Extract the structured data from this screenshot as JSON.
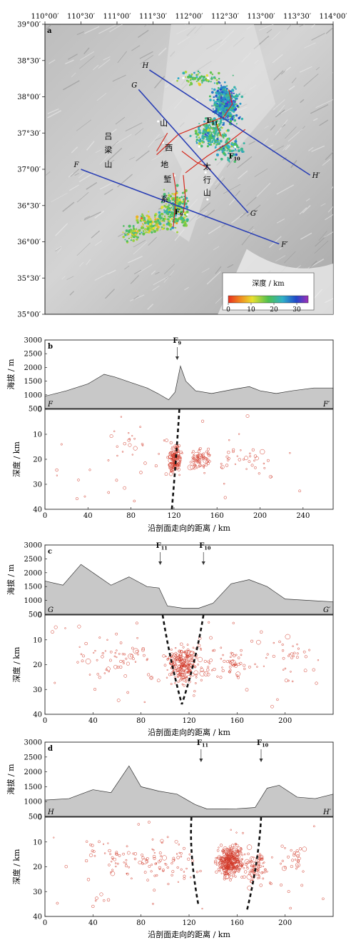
{
  "panel_a": {
    "label": "a",
    "lon_ticks": [
      "110°00′",
      "110°30′",
      "111°00′",
      "111°30′",
      "112°00′",
      "112°30′",
      "113°00′",
      "113°30′",
      "114°00′"
    ],
    "lat_ticks": [
      "39°00′",
      "38°30′",
      "38°00′",
      "37°30′",
      "37°00′",
      "36°30′",
      "36°00′",
      "35°30′",
      "35°00′"
    ],
    "lines": [
      {
        "start": "H",
        "end": "H′",
        "from": [
          111.45,
          38.37
        ],
        "to": [
          113.68,
          36.92
        ]
      },
      {
        "start": "G",
        "end": "G′",
        "from": [
          111.3,
          38.1
        ],
        "to": [
          112.82,
          36.4
        ]
      },
      {
        "start": "F",
        "end": "F′",
        "from": [
          110.5,
          37.0
        ],
        "to": [
          113.25,
          35.97
        ]
      }
    ],
    "faults": [
      {
        "label": "F",
        "sub": "11",
        "lon": 112.24,
        "lat": 37.64
      },
      {
        "label": "F",
        "sub": "10",
        "lon": 112.55,
        "lat": 37.15
      },
      {
        "label": "F",
        "sub": "9",
        "lon": 111.8,
        "lat": 36.38
      }
    ],
    "place_chars": [
      {
        "text": "吕",
        "lon": 110.88,
        "lat": 37.42
      },
      {
        "text": "梁",
        "lon": 110.88,
        "lat": 37.23
      },
      {
        "text": "山",
        "lon": 110.88,
        "lat": 37.03
      },
      {
        "text": "山",
        "lon": 111.65,
        "lat": 37.6
      },
      {
        "text": "西",
        "lon": 111.72,
        "lat": 37.26
      },
      {
        "text": "地",
        "lon": 111.66,
        "lat": 37.03
      },
      {
        "text": "堑",
        "lon": 111.7,
        "lat": 36.83
      },
      {
        "text": "系",
        "lon": 111.66,
        "lat": 36.55
      },
      {
        "text": "太",
        "lon": 112.25,
        "lat": 37.0
      },
      {
        "text": "行",
        "lon": 112.25,
        "lat": 36.82
      },
      {
        "text": "山",
        "lon": 112.25,
        "lat": 36.64
      }
    ],
    "legend": {
      "title": "深度 / km",
      "ticks": [
        "0",
        "10",
        "20",
        "30"
      ],
      "range": [
        0,
        35
      ]
    }
  },
  "chart_data": [
    {
      "type": "scatter",
      "label": "b",
      "start": "F",
      "end": "F′",
      "fault_labels": [
        {
          "label": "F",
          "sub": "9",
          "x": 123
        }
      ],
      "elev_ylabel": "海拔 / m",
      "elev_ticks": [
        "3000",
        "2500",
        "2000",
        "1500",
        "1000",
        "500"
      ],
      "elev_ylim": [
        500,
        3000
      ],
      "ylabel": "深度 / km",
      "yticks": [
        "0",
        "10",
        "20",
        "30",
        "40"
      ],
      "ylim": [
        0,
        40
      ],
      "xlabel": "沿剖面走向的距离 / km",
      "xticks": [
        "0",
        "40",
        "80",
        "120",
        "160",
        "200",
        "240"
      ],
      "xlim": [
        0,
        268
      ],
      "faults": [
        [
          [
            125,
            0
          ],
          [
            122,
            20
          ],
          [
            118,
            40
          ]
        ]
      ]
    },
    {
      "type": "scatter",
      "label": "c",
      "start": "G",
      "end": "G′",
      "fault_labels": [
        {
          "label": "F",
          "sub": "11",
          "x": 96
        },
        {
          "label": "F",
          "sub": "10",
          "x": 132
        }
      ],
      "elev_ylabel": "海拔 / m",
      "elev_ticks": [
        "3000",
        "2500",
        "2000",
        "1500",
        "1000",
        "500"
      ],
      "elev_ylim": [
        500,
        3000
      ],
      "ylabel": "深度 / km",
      "yticks": [
        "0",
        "10",
        "20",
        "30",
        "40"
      ],
      "ylim": [
        0,
        40
      ],
      "xlabel": "沿剖面走向的距离 / km",
      "xticks": [
        "0",
        "40",
        "80",
        "120",
        "160",
        "200"
      ],
      "xlim": [
        0,
        240
      ],
      "faults": [
        [
          [
            98,
            0
          ],
          [
            104,
            18
          ],
          [
            114,
            36
          ]
        ],
        [
          [
            132,
            0
          ],
          [
            126,
            18
          ],
          [
            114,
            36
          ]
        ]
      ]
    },
    {
      "type": "scatter",
      "label": "d",
      "start": "H",
      "end": "H′",
      "fault_labels": [
        {
          "label": "F",
          "sub": "11",
          "x": 130
        },
        {
          "label": "F",
          "sub": "10",
          "x": 180
        }
      ],
      "elev_ylabel": "海拔 / m",
      "elev_ticks": [
        "3000",
        "2500",
        "2000",
        "1500",
        "1000",
        "500"
      ],
      "elev_ylim": [
        500,
        3000
      ],
      "ylabel": "深度 / km",
      "yticks": [
        "0",
        "10",
        "20",
        "30",
        "40"
      ],
      "ylim": [
        0,
        40
      ],
      "xlabel": "沿剖面走向的距离 / km",
      "xticks": [
        "0",
        "40",
        "80",
        "120",
        "160",
        "200"
      ],
      "xlim": [
        0,
        240
      ],
      "faults": [
        [
          [
            122,
            0
          ],
          [
            120,
            15
          ],
          [
            128,
            36
          ]
        ],
        [
          [
            180,
            0
          ],
          [
            178,
            18
          ],
          [
            168,
            38
          ]
        ]
      ]
    }
  ]
}
